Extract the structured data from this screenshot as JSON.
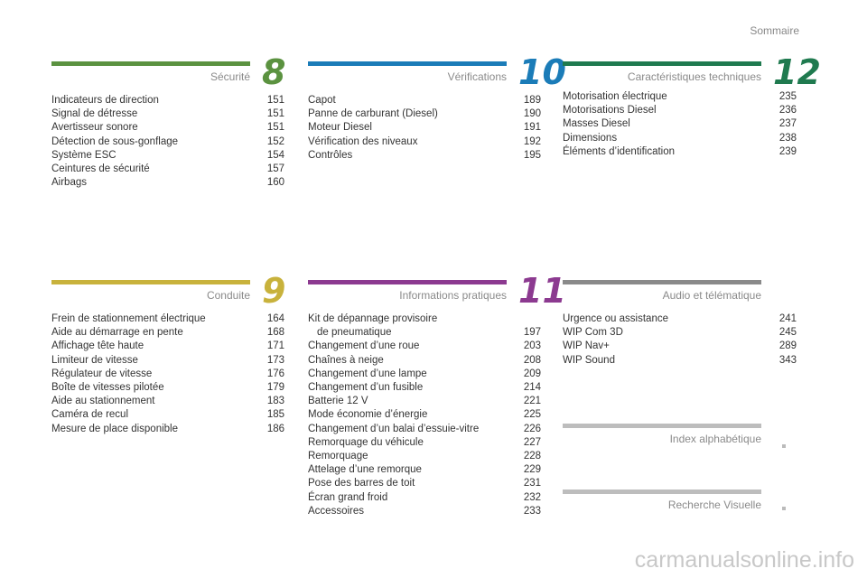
{
  "header": {
    "title": "Sommaire"
  },
  "sections": [
    {
      "title": "Sécurité",
      "number": "8",
      "color": "#5b9240",
      "entries": [
        {
          "label": "Indicateurs de direction",
          "page": "151"
        },
        {
          "label": "Signal de détresse",
          "page": "151"
        },
        {
          "label": "Avertisseur sonore",
          "page": "151"
        },
        {
          "label": "Détection de sous-gonflage",
          "page": "152"
        },
        {
          "label": "Système ESC",
          "page": "154"
        },
        {
          "label": "Ceintures de sécurité",
          "page": "157"
        },
        {
          "label": "Airbags",
          "page": "160"
        }
      ]
    },
    {
      "title": "Vérifications",
      "number": "10",
      "color": "#1b7cb8",
      "entries": [
        {
          "label": "Capot",
          "page": "189"
        },
        {
          "label": "Panne de carburant (Diesel)",
          "page": "190"
        },
        {
          "label": "Moteur Diesel",
          "page": "191"
        },
        {
          "label": "Vérification des niveaux",
          "page": "192"
        },
        {
          "label": "Contrôles",
          "page": "195"
        }
      ]
    },
    {
      "title": "Caractéristiques techniques",
      "number": "12",
      "color": "#1f7a4f",
      "entries": [
        {
          "label": "Motorisation électrique",
          "page": "235"
        },
        {
          "label": "Motorisations Diesel",
          "page": "236"
        },
        {
          "label": "Masses Diesel",
          "page": "237"
        },
        {
          "label": "Dimensions",
          "page": "238"
        },
        {
          "label": "Éléments d’identification",
          "page": "239"
        }
      ]
    },
    {
      "title": "Conduite",
      "number": "9",
      "color": "#c8b23c",
      "entries": [
        {
          "label": "Frein de stationnement électrique",
          "page": "164"
        },
        {
          "label": "Aide au démarrage en pente",
          "page": "168"
        },
        {
          "label": "Affichage tête haute",
          "page": "171"
        },
        {
          "label": "Limiteur de vitesse",
          "page": "173"
        },
        {
          "label": "Régulateur de vitesse",
          "page": "176"
        },
        {
          "label": "Boîte de vitesses pilotée",
          "page": "179"
        },
        {
          "label": "Aide au stationnement",
          "page": "183"
        },
        {
          "label": "Caméra de recul",
          "page": "185"
        },
        {
          "label": "Mesure de place disponible",
          "page": "186"
        }
      ]
    },
    {
      "title": "Informations pratiques",
      "number": "11",
      "color": "#8c3a90",
      "entries": [
        {
          "label": "Kit de dépannage provisoire",
          "continuation": "de pneumatique",
          "page": "197"
        },
        {
          "label": "Changement d’une roue",
          "page": "203"
        },
        {
          "label": "Chaînes à neige",
          "page": "208"
        },
        {
          "label": "Changement d’une lampe",
          "page": "209"
        },
        {
          "label": "Changement d’un fusible",
          "page": "214"
        },
        {
          "label": "Batterie 12 V",
          "page": "221"
        },
        {
          "label": "Mode économie d’énergie",
          "page": "225"
        },
        {
          "label": "Changement d’un balai d’essuie-vitre",
          "page": "226"
        },
        {
          "label": "Remorquage du véhicule",
          "page": "227"
        },
        {
          "label": "Remorquage",
          "page": "228"
        },
        {
          "label": "Attelage d’une remorque",
          "page": "229"
        },
        {
          "label": "Pose des barres de toit",
          "page": "231"
        },
        {
          "label": "Écran grand froid",
          "page": "232"
        },
        {
          "label": "Accessoires",
          "page": "233"
        }
      ]
    },
    {
      "title": "Audio et télématique",
      "color": "#8a8a8a",
      "entries": [
        {
          "label": "Urgence ou assistance",
          "page": "241"
        },
        {
          "label": "WIP Com 3D",
          "page": "245"
        },
        {
          "label": "WIP Nav+",
          "page": "289"
        },
        {
          "label": "WIP Sound",
          "page": "343"
        }
      ]
    },
    {
      "title": "Index alphabétique",
      "color": "#bdbdbd",
      "entries": []
    },
    {
      "title": "Recherche Visuelle",
      "color": "#bdbdbd",
      "entries": []
    }
  ],
  "watermark": "carmanualsonline.info"
}
